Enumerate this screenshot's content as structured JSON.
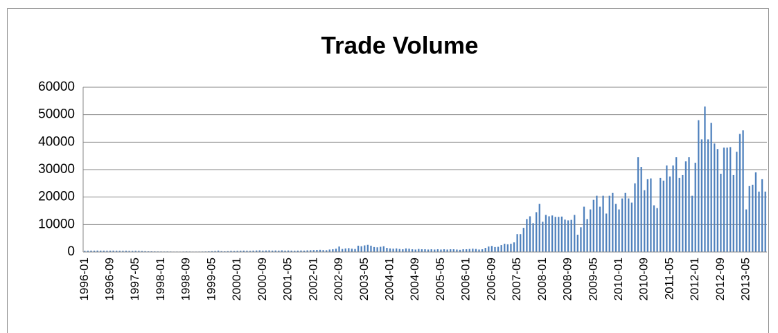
{
  "chart_data": {
    "type": "bar",
    "title": "Trade Volume",
    "categories": [
      "1996-01",
      null,
      null,
      null,
      null,
      null,
      null,
      null,
      "1996-09",
      null,
      null,
      null,
      null,
      null,
      null,
      null,
      "1997-05",
      null,
      null,
      null,
      null,
      null,
      null,
      null,
      "1998-01",
      null,
      null,
      null,
      null,
      null,
      null,
      null,
      "1998-09",
      null,
      null,
      null,
      null,
      null,
      null,
      null,
      "1999-05",
      null,
      null,
      null,
      null,
      null,
      null,
      null,
      "2000-01",
      null,
      null,
      null,
      null,
      null,
      null,
      null,
      "2000-09",
      null,
      null,
      null,
      null,
      null,
      null,
      null,
      "2001-05",
      null,
      null,
      null,
      null,
      null,
      null,
      null,
      "2002-01",
      null,
      null,
      null,
      null,
      null,
      null,
      null,
      "2002-09",
      null,
      null,
      null,
      null,
      null,
      null,
      null,
      "2003-05",
      null,
      null,
      null,
      null,
      null,
      null,
      null,
      "2004-01",
      null,
      null,
      null,
      null,
      null,
      null,
      null,
      "2004-09",
      null,
      null,
      null,
      null,
      null,
      null,
      null,
      "2005-05",
      null,
      null,
      null,
      null,
      null,
      null,
      null,
      "2006-01",
      null,
      null,
      null,
      null,
      null,
      null,
      null,
      "2006-09",
      null,
      null,
      null,
      null,
      null,
      null,
      null,
      "2007-05",
      null,
      null,
      null,
      null,
      null,
      null,
      null,
      "2008-01",
      null,
      null,
      null,
      null,
      null,
      null,
      null,
      "2008-09",
      null,
      null,
      null,
      null,
      null,
      null,
      null,
      "2009-05",
      null,
      null,
      null,
      null,
      null,
      null,
      null,
      "2010-01",
      null,
      null,
      null,
      null,
      null,
      null,
      null,
      "2010-09",
      null,
      null,
      null,
      null,
      null,
      null,
      null,
      "2011-05",
      null,
      null,
      null,
      null,
      null,
      null,
      null,
      "2012-01",
      null,
      null,
      null,
      null,
      null,
      null,
      null,
      "2012-09",
      null,
      null,
      null,
      null,
      null,
      null,
      null,
      "2013-05",
      null,
      null,
      null,
      null,
      null,
      null
    ],
    "values": [
      400,
      450,
      500,
      480,
      520,
      500,
      480,
      450,
      470,
      500,
      450,
      430,
      420,
      450,
      400,
      380,
      420,
      400,
      350,
      300,
      250,
      250,
      220,
      200,
      200,
      180,
      200,
      180,
      150,
      160,
      150,
      180,
      200,
      180,
      150,
      150,
      160,
      180,
      200,
      250,
      300,
      350,
      500,
      300,
      250,
      300,
      400,
      350,
      400,
      450,
      500,
      450,
      400,
      500,
      550,
      600,
      500,
      550,
      600,
      500,
      550,
      500,
      600,
      500,
      550,
      500,
      450,
      500,
      550,
      500,
      600,
      650,
      700,
      750,
      800,
      700,
      650,
      900,
      1000,
      1200,
      2000,
      1100,
      1300,
      1400,
      1200,
      1100,
      2300,
      2100,
      2400,
      2600,
      2300,
      1800,
      1700,
      1900,
      2100,
      1500,
      1300,
      1200,
      1300,
      1100,
      1000,
      1300,
      1200,
      1000,
      900,
      1100,
      1000,
      1000,
      900,
      1000,
      900,
      1000,
      900,
      1000,
      900,
      1000,
      1000,
      900,
      800,
      1000,
      1000,
      1100,
      1200,
      1100,
      900,
      1000,
      1500,
      2000,
      2200,
      1800,
      1900,
      2500,
      3000,
      2800,
      3000,
      3500,
      6500,
      6500,
      8800,
      12000,
      13000,
      10500,
      14500,
      17500,
      11000,
      13500,
      13000,
      13300,
      12800,
      12800,
      12900,
      11800,
      11500,
      11700,
      13500,
      6300,
      9000,
      16500,
      12000,
      15500,
      19000,
      20500,
      16500,
      20500,
      14000,
      20500,
      21500,
      17500,
      15500,
      19500,
      21500,
      19500,
      18000,
      25000,
      34500,
      31000,
      22500,
      26500,
      26800,
      17000,
      16000,
      27000,
      26000,
      31500,
      27500,
      31500,
      34500,
      27000,
      28000,
      33000,
      34500,
      20500,
      32500,
      48000,
      41000,
      53000,
      41000,
      47000,
      39500,
      37500,
      28500,
      38000,
      38000,
      38200,
      28000,
      36500,
      43000,
      44300,
      15500,
      24000,
      24500,
      29000,
      22000,
      26500,
      22000
    ],
    "color": "#4f81bd",
    "ylim": [
      0,
      60000
    ],
    "yticks": [
      0,
      10000,
      20000,
      30000,
      40000,
      50000,
      60000
    ],
    "grid": true
  }
}
